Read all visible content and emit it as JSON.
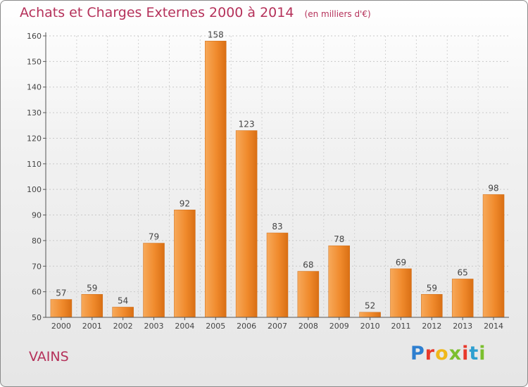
{
  "chart_data": {
    "type": "bar",
    "title": "Achats et Charges Externes 2000 à 2014",
    "subtitle": "(en milliers d'€)",
    "categories": [
      "2000",
      "2001",
      "2002",
      "2003",
      "2004",
      "2005",
      "2006",
      "2007",
      "2008",
      "2009",
      "2010",
      "2011",
      "2012",
      "2013",
      "2014"
    ],
    "values": [
      57,
      59,
      54,
      79,
      92,
      158,
      123,
      83,
      68,
      78,
      52,
      69,
      59,
      65,
      98
    ],
    "ylim": [
      50,
      160
    ],
    "yticks": [
      50,
      60,
      70,
      80,
      90,
      100,
      110,
      120,
      130,
      140,
      150,
      160
    ],
    "grid": true,
    "bar_color": "#f08a2c"
  },
  "footer": {
    "location": "VAINS",
    "brand": "Proxiti",
    "brand_colors": [
      "#2e7fd0",
      "#e8392b",
      "#f0b81a",
      "#7bbf2e",
      "#e8392b",
      "#2e9fd0",
      "#7bbf2e"
    ]
  }
}
